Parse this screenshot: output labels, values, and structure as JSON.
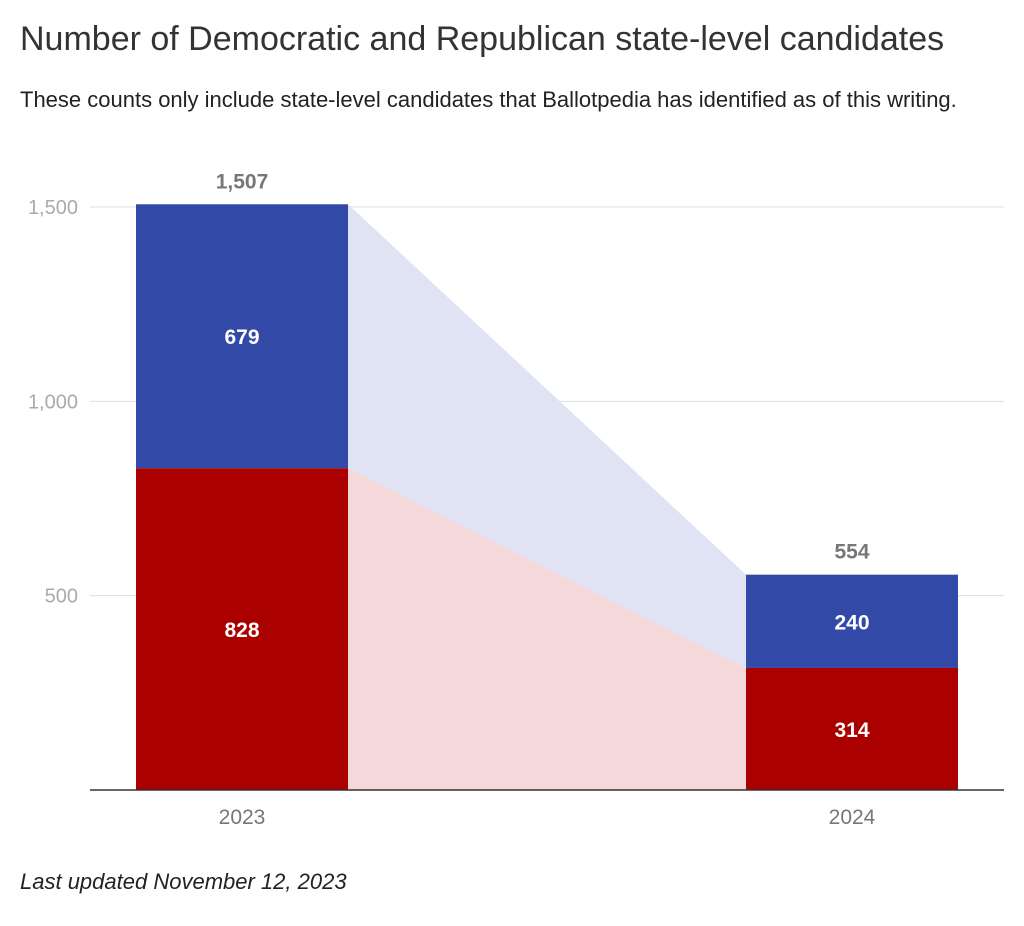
{
  "chart_data": {
    "type": "bar",
    "stacked": true,
    "title": "Number of Democratic and Republican state-level candidates",
    "subtitle": "These counts only include state-level candidates that Ballotpedia has identified as of this writing.",
    "footnote": "Last updated November 12, 2023",
    "categories": [
      "2023",
      "2024"
    ],
    "series": [
      {
        "values": [
          828,
          314
        ],
        "color": "#aa0000",
        "band_color": "#f5d9da"
      },
      {
        "values": [
          679,
          240
        ],
        "color": "#3349a8",
        "band_color": "#e0e3f3"
      }
    ],
    "totals": [
      1507,
      554
    ],
    "totals_labels": [
      "1,507",
      "554"
    ],
    "ylim": [
      0,
      1500
    ],
    "yticks": [
      500,
      1000,
      1500
    ],
    "ytick_labels": [
      "500",
      "1,000",
      "1,500"
    ],
    "grid": true,
    "legend": "none"
  }
}
